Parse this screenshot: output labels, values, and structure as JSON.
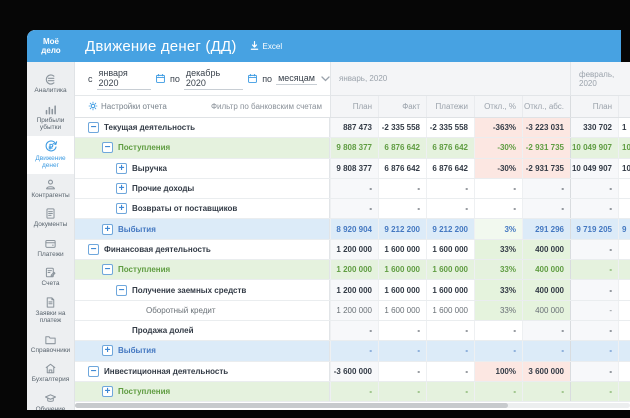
{
  "brand": {
    "logo": "Моё\nдело"
  },
  "header": {
    "title": "Движение денег (ДД)",
    "excel_label": "Excel",
    "accent_color": "#47a2e2"
  },
  "sidebar": {
    "items": [
      {
        "label": "Аналитика",
        "icon": "analytics-icon",
        "active": false
      },
      {
        "label": "Прибыли убытки",
        "icon": "profit-loss-icon",
        "active": false
      },
      {
        "label": "Движение денег",
        "icon": "money-flow-icon",
        "active": true
      },
      {
        "label": "Контрагенты",
        "icon": "counterparties-icon",
        "active": false
      },
      {
        "label": "Документы",
        "icon": "documents-icon",
        "active": false
      },
      {
        "label": "Платежи",
        "icon": "payments-icon",
        "active": false
      },
      {
        "label": "Счета",
        "icon": "invoices-icon",
        "active": false
      },
      {
        "label": "Заявки на платеж",
        "icon": "payment-request-icon",
        "active": false
      },
      {
        "label": "Справочники",
        "icon": "directories-icon",
        "active": false
      },
      {
        "label": "Бухгалтерия",
        "icon": "accounting-icon",
        "active": false
      },
      {
        "label": "Обучение",
        "icon": "training-icon",
        "active": false
      }
    ]
  },
  "filter": {
    "from_label": "с",
    "from_value": "января 2020",
    "to_label": "по",
    "to_value": "декабрь 2020",
    "period_label": "по",
    "period_value": "месяцам"
  },
  "toolbar": {
    "settings_label": "Настройки отчета",
    "bank_filter_label": "Фильтр по банковским счетам"
  },
  "table": {
    "month_groups": [
      "январь, 2020",
      "февраль, 2020"
    ],
    "columns": [
      "План",
      "Факт",
      "Платежи",
      "Откл., %",
      "Откл., абс."
    ],
    "feb_visible_column": "План",
    "rows": [
      {
        "label": "Текущая деятельность",
        "level": 0,
        "expand": "minus",
        "kind": "section",
        "values": [
          "887 473",
          "-2 335 558",
          "-2 335 558",
          "-363%",
          "-3 223 031"
        ],
        "feb_plan": "330 702",
        "feb_fact_partial": "1",
        "dev_bg": [
          "neg",
          "neg"
        ]
      },
      {
        "label": "Поступления",
        "level": 1,
        "expand": "minus",
        "kind": "income",
        "values": [
          "9 808 377",
          "6 876 642",
          "6 876 642",
          "-30%",
          "-2 931 735"
        ],
        "feb_plan": "10 049 907",
        "feb_fact_partial": "10",
        "dev_bg": [
          "neg",
          "neg"
        ]
      },
      {
        "label": "Выручка",
        "level": 2,
        "expand": "plus",
        "kind": "item",
        "values": [
          "9 808 377",
          "6 876 642",
          "6 876 642",
          "-30%",
          "-2 931 735"
        ],
        "feb_plan": "10 049 907",
        "feb_fact_partial": "10",
        "dev_bg": [
          "neg",
          "neg"
        ]
      },
      {
        "label": "Прочие доходы",
        "level": 2,
        "expand": "plus",
        "kind": "item",
        "values": [
          "-",
          "-",
          "-",
          "-",
          "-"
        ],
        "feb_plan": "-",
        "feb_fact_partial": "",
        "dev_bg": [
          null,
          null
        ]
      },
      {
        "label": "Возвраты от поставщиков",
        "level": 2,
        "expand": "plus",
        "kind": "item",
        "values": [
          "-",
          "-",
          "-",
          "-",
          "-"
        ],
        "feb_plan": "-",
        "feb_fact_partial": "",
        "dev_bg": [
          null,
          null
        ]
      },
      {
        "label": "Выбытия",
        "level": 1,
        "expand": "plus",
        "kind": "outcome",
        "values": [
          "8 920 904",
          "9 212 200",
          "9 212 200",
          "3%",
          "291 296"
        ],
        "feb_plan": "9 719 205",
        "feb_fact_partial": "9",
        "dev_bg": [
          "pos_light",
          null
        ]
      },
      {
        "label": "Финансовая деятельность",
        "level": 0,
        "expand": "minus",
        "kind": "section",
        "values": [
          "1 200 000",
          "1 600 000",
          "1 600 000",
          "33%",
          "400 000"
        ],
        "feb_plan": "-",
        "feb_fact_partial": "",
        "dev_bg": [
          "pos",
          "pos"
        ]
      },
      {
        "label": "Поступления",
        "level": 1,
        "expand": "minus",
        "kind": "income",
        "values": [
          "1 200 000",
          "1 600 000",
          "1 600 000",
          "33%",
          "400 000"
        ],
        "feb_plan": "-",
        "feb_fact_partial": "",
        "dev_bg": [
          null,
          null
        ]
      },
      {
        "label": "Получение заемных средств",
        "level": 2,
        "expand": "minus",
        "kind": "item",
        "values": [
          "1 200 000",
          "1 600 000",
          "1 600 000",
          "33%",
          "400 000"
        ],
        "feb_plan": "-",
        "feb_fact_partial": "",
        "dev_bg": [
          "pos",
          "pos"
        ]
      },
      {
        "label": "Оборотный кредит",
        "level": 3,
        "expand": null,
        "kind": "leaf",
        "values": [
          "1 200 000",
          "1 600 000",
          "1 600 000",
          "33%",
          "400 000"
        ],
        "feb_plan": "-",
        "feb_fact_partial": "",
        "dev_bg": [
          "pos",
          "pos"
        ]
      },
      {
        "label": "Продажа долей",
        "level": 2,
        "expand": null,
        "kind": "item",
        "values": [
          "-",
          "-",
          "-",
          "-",
          "-"
        ],
        "feb_plan": "-",
        "feb_fact_partial": "",
        "dev_bg": [
          null,
          null
        ]
      },
      {
        "label": "Выбытия",
        "level": 1,
        "expand": "plus",
        "kind": "outcome",
        "values": [
          "-",
          "-",
          "-",
          "-",
          "-"
        ],
        "feb_plan": "-",
        "feb_fact_partial": "",
        "dev_bg": [
          null,
          null
        ]
      },
      {
        "label": "Инвестиционная деятельность",
        "level": 0,
        "expand": "minus",
        "kind": "section",
        "values": [
          "-3 600 000",
          "-",
          "-",
          "100%",
          "3 600 000"
        ],
        "feb_plan": "-",
        "feb_fact_partial": "",
        "dev_bg": [
          "neg",
          "neg"
        ]
      },
      {
        "label": "Поступления",
        "level": 1,
        "expand": "plus",
        "kind": "income",
        "values": [
          "-",
          "-",
          "-",
          "-",
          "-"
        ],
        "feb_plan": "-",
        "feb_fact_partial": "",
        "dev_bg": [
          null,
          null
        ]
      }
    ]
  },
  "colors": {
    "dev_negative_bg": "#fce7e2",
    "dev_positive_bg": "#e5f3dd",
    "dev_positive_light_bg": "#f2f9ef",
    "income_row_bg": "#e5f2de",
    "outcome_row_bg": "#dcebf8",
    "shaded_col_bg": "#f7f8fa"
  }
}
